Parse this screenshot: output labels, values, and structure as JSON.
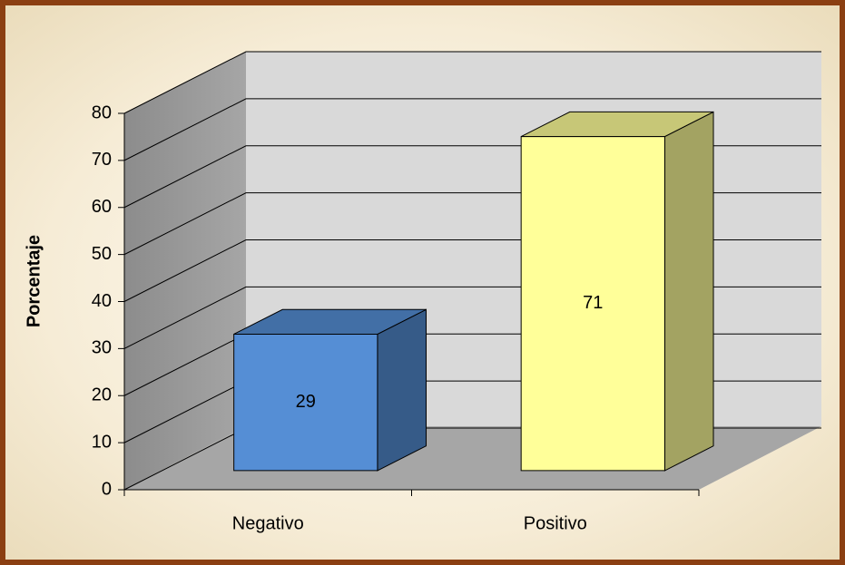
{
  "chart_data": {
    "type": "bar3d",
    "y_axis_label": "Porcentaje",
    "categories": [
      "Negativo",
      "Positivo"
    ],
    "values": [
      29,
      71
    ],
    "colors": [
      "#558ed5",
      "#ffff99"
    ],
    "ylim": [
      0,
      80
    ],
    "yticks": [
      0,
      10,
      20,
      30,
      40,
      50,
      60,
      70,
      80
    ],
    "grid": true
  }
}
